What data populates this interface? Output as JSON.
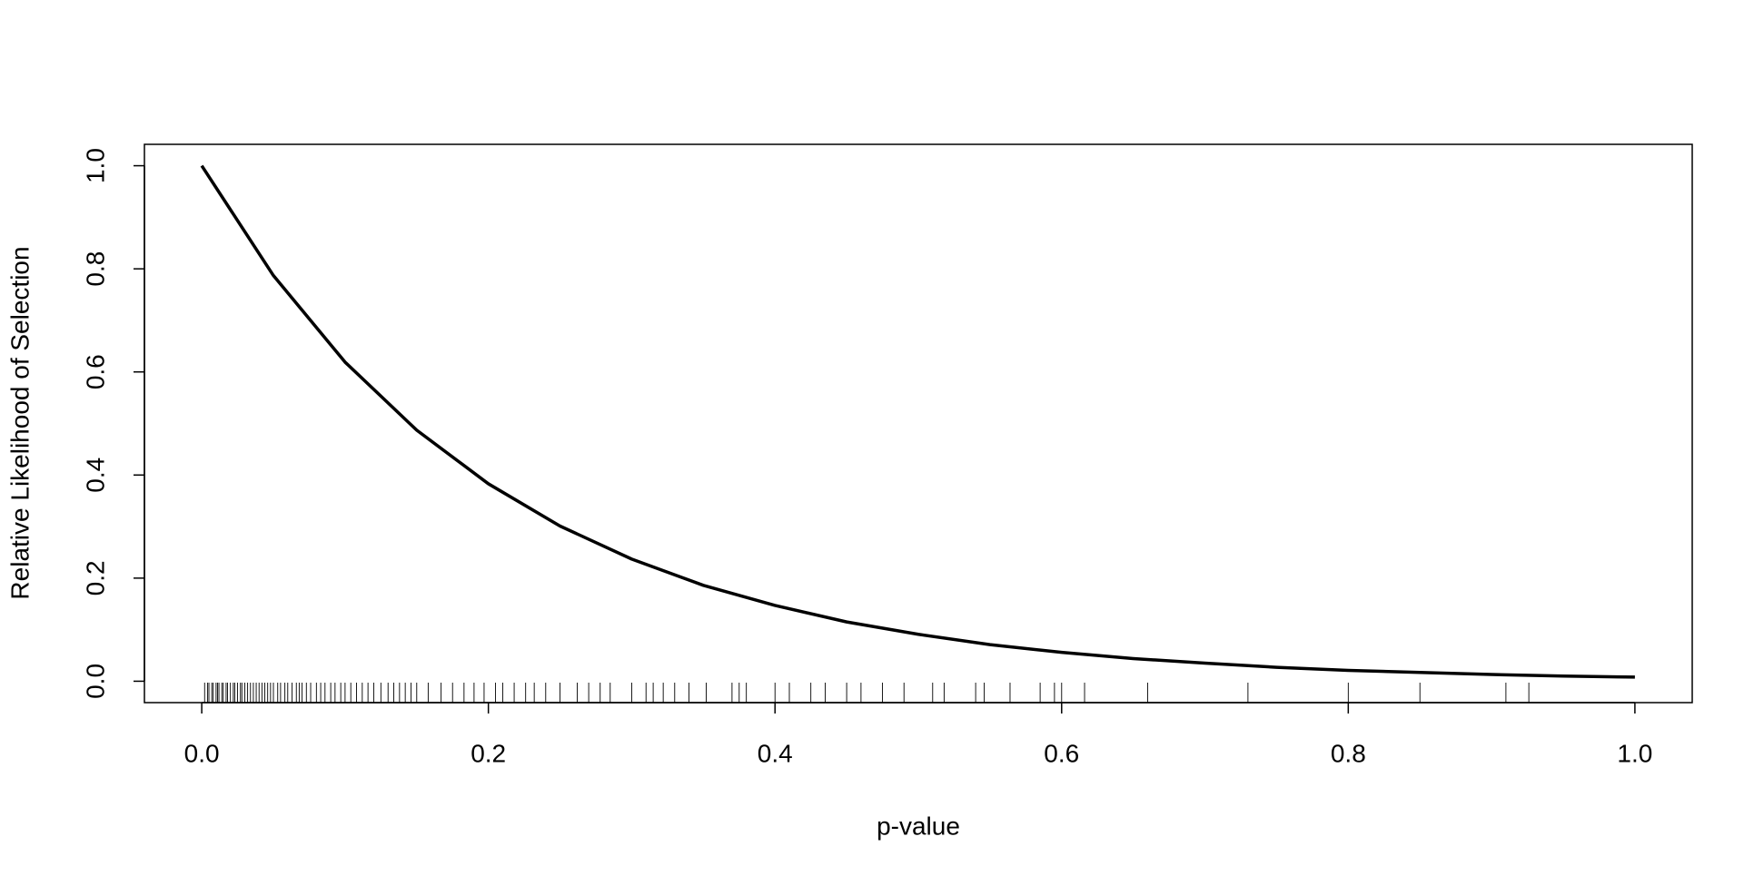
{
  "chart_data": {
    "type": "line",
    "x_label": "p-value",
    "y_label": "Relative Likelihood of Selection",
    "x": [
      0,
      0.05,
      0.1,
      0.15,
      0.2,
      0.25,
      0.3,
      0.35,
      0.4,
      0.45,
      0.5,
      0.55,
      0.6,
      0.65,
      0.7,
      0.75,
      0.8,
      0.85,
      0.9,
      0.95,
      1
    ],
    "values": [
      1.0,
      0.787,
      0.619,
      0.487,
      0.383,
      0.301,
      0.237,
      0.186,
      0.147,
      0.115,
      0.091,
      0.071,
      0.056,
      0.044,
      0.035,
      0.027,
      0.021,
      0.017,
      0.013,
      0.01,
      0.008
    ],
    "color": "#000000",
    "rug": [
      0.002,
      0.004,
      0.005,
      0.007,
      0.008,
      0.01,
      0.011,
      0.012,
      0.014,
      0.015,
      0.017,
      0.018,
      0.02,
      0.022,
      0.023,
      0.025,
      0.027,
      0.028,
      0.03,
      0.032,
      0.034,
      0.036,
      0.038,
      0.04,
      0.042,
      0.044,
      0.046,
      0.048,
      0.05,
      0.053,
      0.055,
      0.058,
      0.06,
      0.063,
      0.066,
      0.068,
      0.07,
      0.073,
      0.076,
      0.08,
      0.083,
      0.086,
      0.09,
      0.093,
      0.097,
      0.1,
      0.104,
      0.108,
      0.112,
      0.116,
      0.12,
      0.125,
      0.13,
      0.134,
      0.138,
      0.142,
      0.146,
      0.15,
      0.158,
      0.167,
      0.175,
      0.183,
      0.19,
      0.197,
      0.205,
      0.21,
      0.218,
      0.226,
      0.232,
      0.24,
      0.25,
      0.262,
      0.27,
      0.278,
      0.285,
      0.3,
      0.31,
      0.315,
      0.322,
      0.33,
      0.34,
      0.352,
      0.37,
      0.375,
      0.38,
      0.4,
      0.41,
      0.425,
      0.435,
      0.45,
      0.46,
      0.475,
      0.49,
      0.51,
      0.518,
      0.54,
      0.546,
      0.564,
      0.585,
      0.595,
      0.6,
      0.616,
      0.66,
      0.73,
      0.8,
      0.85,
      0.91,
      0.926
    ],
    "xlim": [
      -0.04,
      1.04
    ],
    "ylim": [
      -0.0415,
      1.0415
    ],
    "xticks": [
      {
        "value": 0,
        "label": "0.0"
      },
      {
        "value": 0.2,
        "label": "0.2"
      },
      {
        "value": 0.4,
        "label": "0.4"
      },
      {
        "value": 0.6,
        "label": "0.6"
      },
      {
        "value": 0.8,
        "label": "0.8"
      },
      {
        "value": 1,
        "label": "1.0"
      }
    ],
    "yticks": [
      {
        "value": 0,
        "label": "0.0"
      },
      {
        "value": 0.2,
        "label": "0.2"
      },
      {
        "value": 0.4,
        "label": "0.4"
      },
      {
        "value": 0.6,
        "label": "0.6"
      },
      {
        "value": 0.8,
        "label": "0.8"
      },
      {
        "value": 1,
        "label": "1.0"
      }
    ],
    "grid": false
  }
}
